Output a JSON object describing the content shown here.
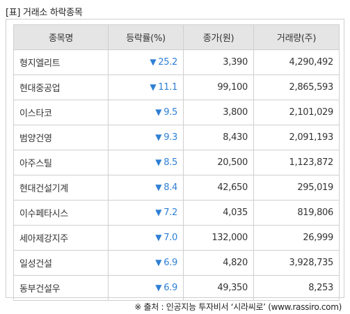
{
  "caption": "[표] 거래소 하락종목",
  "header": {
    "name": "종목명",
    "rate": "등락률(%)",
    "price": "종가(원)",
    "volume": "거래량(주)"
  },
  "down_symbol": "▼",
  "rate_color": "#2e7fd4",
  "rows": [
    {
      "name": "형지엘리트",
      "rate": "25.2",
      "price": "3,390",
      "volume": "4,290,492"
    },
    {
      "name": "현대중공업",
      "rate": "11.1",
      "price": "99,100",
      "volume": "2,865,593"
    },
    {
      "name": "이스타코",
      "rate": "9.5",
      "price": "3,800",
      "volume": "2,101,029"
    },
    {
      "name": "범양건영",
      "rate": "9.3",
      "price": "8,430",
      "volume": "2,091,193"
    },
    {
      "name": "아주스틸",
      "rate": "8.5",
      "price": "20,500",
      "volume": "1,123,872"
    },
    {
      "name": "현대건설기계",
      "rate": "8.4",
      "price": "42,650",
      "volume": "295,019"
    },
    {
      "name": "이수페타시스",
      "rate": "7.2",
      "price": "4,035",
      "volume": "819,806"
    },
    {
      "name": "세아제강지주",
      "rate": "7.0",
      "price": "132,000",
      "volume": "26,999"
    },
    {
      "name": "일성건설",
      "rate": "6.9",
      "price": "4,820",
      "volume": "3,928,735"
    },
    {
      "name": "동부건설우",
      "rate": "6.9",
      "price": "49,350",
      "volume": "8,253"
    }
  ],
  "source": "※ 출처 : 인공지능 투자비서 ‘시라씨로’ (www.rassiro.com)"
}
